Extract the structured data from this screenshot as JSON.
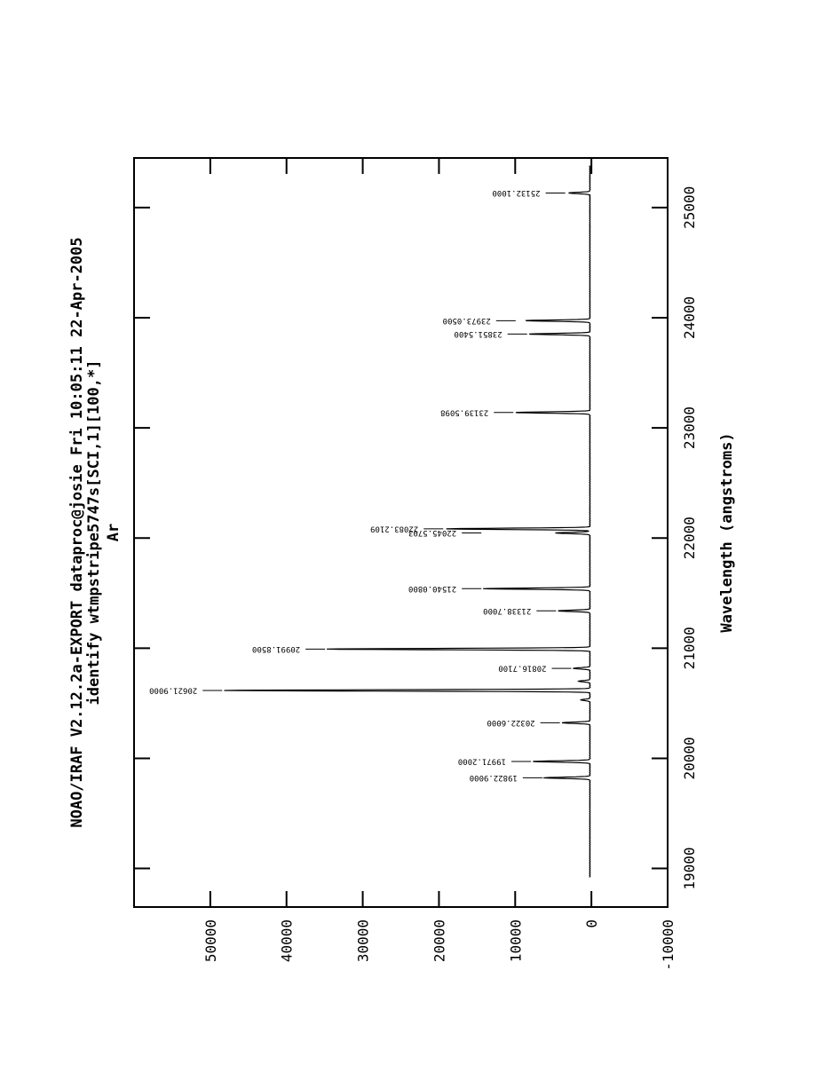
{
  "header": {
    "line1": "NOAO/IRAF V2.12.2a-EXPORT dataproc@josie Fri 10:05:11 22-Apr-2005",
    "line2": "identify wtmpstripe5747s[SCI,1][100,*]",
    "line3": "Ar"
  },
  "chart_data": {
    "type": "line",
    "title": "",
    "xlabel": "Wavelength (angstroms)",
    "ylabel": "",
    "xlim": [
      18650,
      25450
    ],
    "ylim": [
      -10000,
      60000
    ],
    "x_ticks": [
      19000,
      20000,
      21000,
      22000,
      23000,
      24000,
      25000
    ],
    "x_tick_labels": [
      "19000",
      "20000",
      "21000",
      "22000",
      "23000",
      "24000",
      "25000"
    ],
    "y_ticks": [
      -10000,
      0,
      10000,
      20000,
      30000,
      40000,
      50000
    ],
    "y_tick_labels": [
      "-10000",
      "0",
      "10000",
      "20000",
      "30000",
      "40000",
      "50000"
    ],
    "grid": false,
    "baseline": 200,
    "x_start": 18920,
    "x_end": 25380,
    "peaks": [
      {
        "x": 19822.9,
        "y": 6000
      },
      {
        "x": 19971.2,
        "y": 7500
      },
      {
        "x": 20322.6,
        "y": 3700
      },
      {
        "x": 20530,
        "y": 1200
      },
      {
        "x": 20616.2,
        "y": 48000
      },
      {
        "x": 20700,
        "y": 1500
      },
      {
        "x": 20816.7,
        "y": 2200
      },
      {
        "x": 20991.85,
        "y": 34500
      },
      {
        "x": 21338.7,
        "y": 4200
      },
      {
        "x": 21540.08,
        "y": 14000
      },
      {
        "x": 22045.57,
        "y": 4500
      },
      {
        "x": 22083.21,
        "y": 19000
      },
      {
        "x": 23139.5,
        "y": 9800
      },
      {
        "x": 23851.54,
        "y": 8000
      },
      {
        "x": 23973.05,
        "y": 8500
      },
      {
        "x": 25132.1,
        "y": 2800
      }
    ],
    "line_labels": [
      {
        "x": 19822.9,
        "y": 9000,
        "text": "19822.9000"
      },
      {
        "x": 19971.2,
        "y": 10500,
        "text": "19971.2000"
      },
      {
        "x": 20322.6,
        "y": 6700,
        "text": "20322.6000"
      },
      {
        "x": 20616.2,
        "y": 51000,
        "text": "20621.9000"
      },
      {
        "x": 20816.7,
        "y": 5200,
        "text": "20816.7100"
      },
      {
        "x": 20991.85,
        "y": 37500,
        "text": "20991.8500"
      },
      {
        "x": 21338.7,
        "y": 7200,
        "text": "21338.7000"
      },
      {
        "x": 21540.08,
        "y": 17000,
        "text": "21540.0800"
      },
      {
        "x": 22045.57,
        "y": 17000,
        "text": "22045.5703"
      },
      {
        "x": 22083.21,
        "y": 22000,
        "text": "22083.2109"
      },
      {
        "x": 23139.5,
        "y": 12800,
        "text": "23139.5098"
      },
      {
        "x": 23851.54,
        "y": 11000,
        "text": "23851.5400"
      },
      {
        "x": 23973.05,
        "y": 12500,
        "text": "23973.0500"
      },
      {
        "x": 25132.1,
        "y": 6000,
        "text": "25132.1000"
      }
    ]
  }
}
